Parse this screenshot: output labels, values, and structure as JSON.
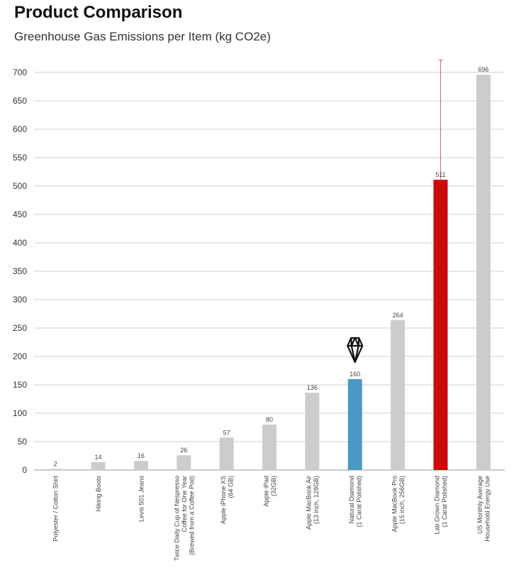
{
  "header": {
    "title": "Product Comparison",
    "subtitle": "Greenhouse Gas Emissions per Item (kg CO2e)"
  },
  "chart_data": {
    "type": "bar",
    "title": "Product Comparison",
    "subtitle": "Greenhouse Gas Emissions per Item (kg CO2e)",
    "xlabel": "",
    "ylabel": "",
    "ylim": [
      0,
      700
    ],
    "ytick_step": 50,
    "grid": true,
    "legend": "none",
    "categories": [
      [
        "Polyester / Cotton Shirt"
      ],
      [
        "Hiking Boots"
      ],
      [
        "Levis 501 Jeans"
      ],
      [
        "Twice Daily Cup of Nespresso",
        "Coffee for One Year",
        "(Brewed from a Coffee Pod)"
      ],
      [
        "Apple iPhone XS",
        "(64 GB)"
      ],
      [
        "Apple iPad",
        "(32GB)"
      ],
      [
        "Apple MacBook Air",
        "(13 inch, 128GB)"
      ],
      [
        "Natural Diamond",
        "(1 Carat Polished)"
      ],
      [
        "Apple MacBook Pro",
        "(15 inch, 256GB)"
      ],
      [
        "Lab Grown Diamond",
        "(1 Carat Polished)"
      ],
      [
        "US Monthly Average",
        "Household Energy Use"
      ]
    ],
    "values": [
      2,
      14,
      16,
      26,
      57,
      80,
      136,
      160,
      264,
      511,
      696
    ],
    "data_labels": [
      "2",
      "14",
      "16",
      "26",
      "57",
      "80",
      "136",
      "160",
      "264",
      "511",
      "696"
    ],
    "bar_colors": [
      "#cccccc",
      "#cccccc",
      "#cccccc",
      "#cccccc",
      "#cccccc",
      "#cccccc",
      "#cccccc",
      "#4a99c2",
      "#cccccc",
      "#cc0a0a",
      "#cccccc"
    ],
    "error_bar": {
      "category_index": 9,
      "upper": 722
    },
    "annotations": [
      {
        "category_index": 7,
        "icon": "diamond-icon"
      }
    ]
  }
}
